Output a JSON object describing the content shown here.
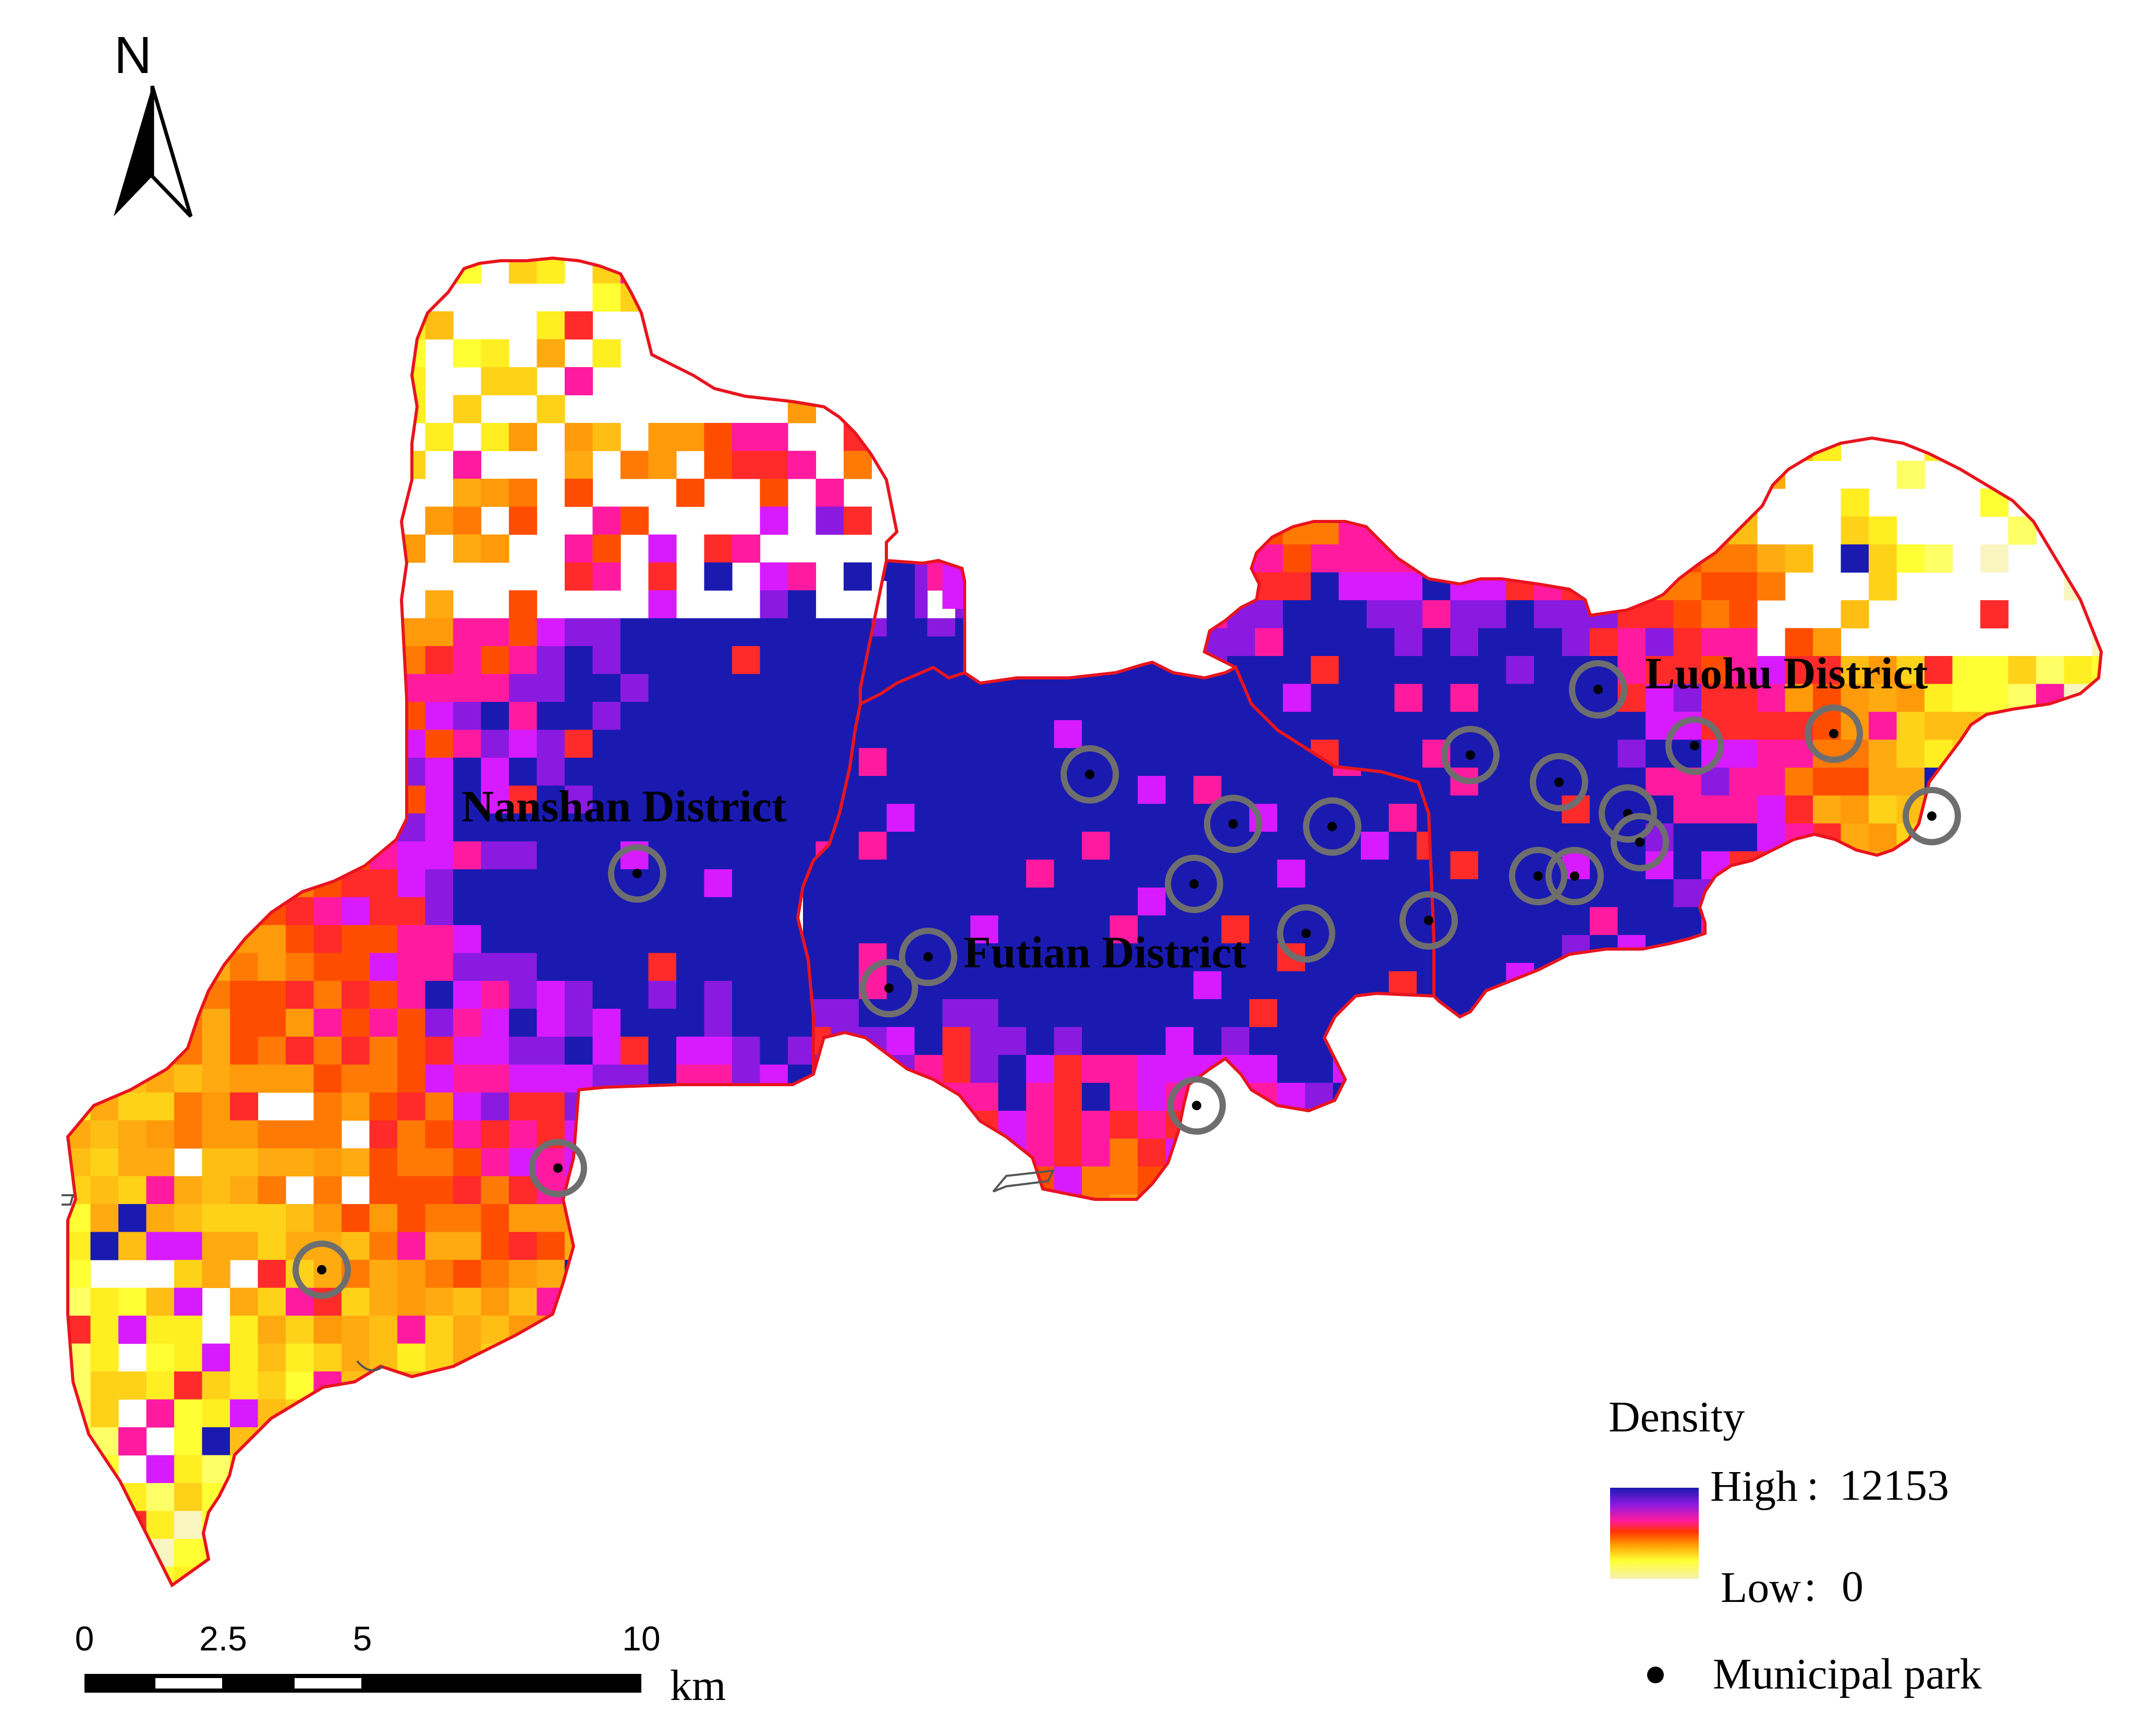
{
  "north_arrow": {
    "label": "N"
  },
  "districts": [
    {
      "name": "Nanshan District"
    },
    {
      "name": "Futian District"
    },
    {
      "name": "Luohu District"
    }
  ],
  "legend": {
    "title": "Density",
    "high_label": "High",
    "high_value": "12153",
    "low_label": "Low",
    "low_value": "0",
    "park_label": "Municipal park",
    "ramp_colors": [
      "#1a1ab0",
      "#8a1ae0",
      "#ff1aa0",
      "#ff3300",
      "#ff9900",
      "#ffff33",
      "#f5f0b0"
    ]
  },
  "scale_bar": {
    "ticks": [
      "0",
      "2.5",
      "5",
      "10"
    ],
    "unit": "km"
  },
  "colors": {
    "boundary": "#e8141e",
    "park_ring": "#6e6e6e",
    "park_dot": "#000000"
  }
}
